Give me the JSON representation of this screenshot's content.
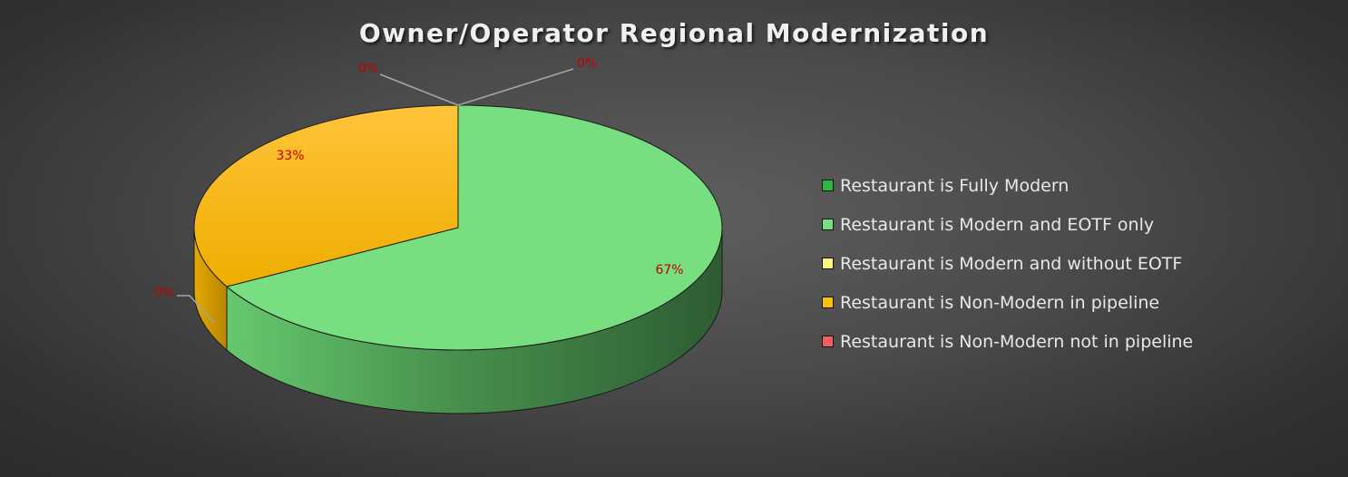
{
  "chart_data": {
    "type": "pie",
    "title": "Owner/Operator Regional Modernization",
    "style": "3d",
    "legend_position": "right",
    "data_label_color": "#c00000",
    "series": [
      {
        "name": "Restaurant is Fully Modern",
        "value": 0,
        "label": "0%",
        "color": "#2db83d"
      },
      {
        "name": "Restaurant is Modern and EOTF only",
        "value": 67,
        "label": "67%",
        "color": "#77df7f"
      },
      {
        "name": "Restaurant is Modern and without EOTF",
        "value": 0,
        "label": "0%",
        "color": "#fff380"
      },
      {
        "name": "Restaurant is Non-Modern in pipeline",
        "value": 33,
        "label": "33%",
        "color": "#fbbf10"
      },
      {
        "name": "Restaurant is Non-Modern not in pipeline",
        "value": 0,
        "label": "0%",
        "color": "#f06060"
      }
    ]
  }
}
